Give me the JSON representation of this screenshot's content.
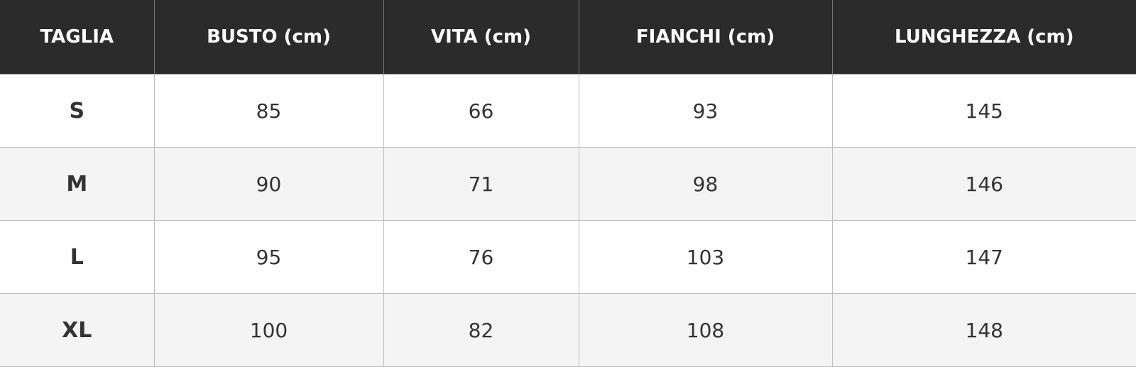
{
  "table": {
    "header": [
      "TAGLIA",
      "BUSTO (cm)",
      "VITA (cm)",
      "FIANCHI (cm)",
      "LUNGHEZZA (cm)"
    ],
    "rows": [
      [
        "S",
        85,
        66,
        93,
        145
      ],
      [
        "M",
        90,
        71,
        98,
        146
      ],
      [
        "L",
        95,
        76,
        103,
        147
      ],
      [
        "XL",
        100,
        82,
        108,
        148
      ]
    ]
  }
}
